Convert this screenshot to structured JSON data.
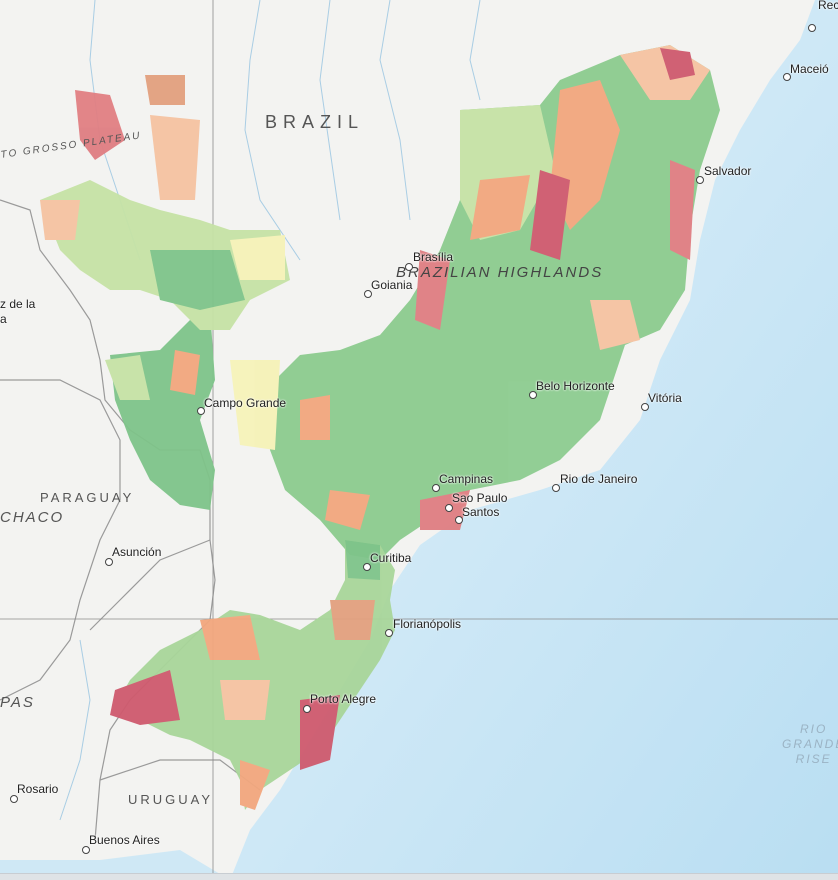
{
  "map": {
    "countries": [
      "BRAZIL",
      "PARAGUAY",
      "URUGUAY"
    ],
    "regions": [
      "BRAZILIAN HIGHLANDS",
      "CHACO",
      "TO GROSSO PLATEAU",
      "PAS"
    ],
    "ocean_feature": [
      "RIO",
      "GRANDE",
      "RISE"
    ],
    "partial_labels": [
      "Rec",
      "z de la",
      "a"
    ],
    "cities": [
      {
        "name": "Salvador"
      },
      {
        "name": "Maceió"
      },
      {
        "name": "Brasília"
      },
      {
        "name": "Goiania"
      },
      {
        "name": "Belo Horizonte"
      },
      {
        "name": "Vitória"
      },
      {
        "name": "Campo Grande"
      },
      {
        "name": "Campinas"
      },
      {
        "name": "Rio de Janeiro"
      },
      {
        "name": "Sao Paulo"
      },
      {
        "name": "Santos"
      },
      {
        "name": "Asunción"
      },
      {
        "name": "Curitiba"
      },
      {
        "name": "Florianópolis"
      },
      {
        "name": "Porto Alegre"
      },
      {
        "name": "Rosario"
      },
      {
        "name": "Buenos Aires"
      }
    ],
    "colors": {
      "land": "#f3f3f1",
      "ocean": "#c9e6f5",
      "green": "#7fc48a",
      "lightgreen": "#c6e3a6",
      "yellow": "#f6f2b8",
      "orange": "#f2a77e",
      "red": "#cf5a6e"
    }
  }
}
